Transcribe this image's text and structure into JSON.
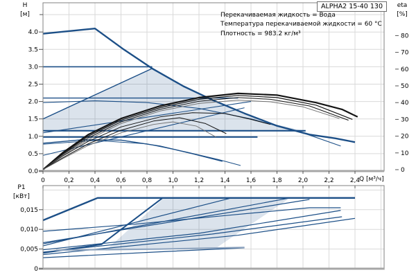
{
  "pump_model_box": "ALPHA2 15-40 130",
  "info_lines": [
    "Перекачиваемая жидкость = Вода",
    "Температура перекачиваемой жидкости = 60 °C",
    "Плотность = 983.2 кг/м³"
  ],
  "axes": {
    "h": {
      "name": "H",
      "unit": "[м]",
      "tick_labels": [
        "0.0",
        "0.5",
        "1.0",
        "1.5",
        "2.0",
        "2.5",
        "3.0",
        "3.5",
        "4.0"
      ],
      "tick_values": [
        0,
        0.5,
        1,
        1.5,
        2,
        2.5,
        3,
        3.5,
        4
      ],
      "minor_tick_values": [
        4.5
      ]
    },
    "eta": {
      "name": "eta",
      "unit": "[%]",
      "tick_labels": [
        "0",
        "10",
        "20",
        "30",
        "40",
        "50",
        "60",
        "70",
        "80"
      ],
      "tick_values": [
        0,
        10,
        20,
        30,
        40,
        50,
        60,
        70,
        80
      ]
    },
    "q": {
      "label": "Q [м³/ч]",
      "tick_labels": [
        "0",
        "0,2",
        "0,4",
        "0,6",
        "0,8",
        "1,0",
        "1,2",
        "1,4",
        "1,6",
        "1,8",
        "2,0",
        "2,2",
        "2,4"
      ],
      "tick_values": [
        0,
        0.2,
        0.4,
        0.6,
        0.8,
        1.0,
        1.2,
        1.4,
        1.6,
        1.8,
        2.0,
        2.2,
        2.4
      ]
    },
    "p1": {
      "name": "P1",
      "unit": "[кВт]",
      "tick_labels": [
        "0",
        "0,005",
        "0,010",
        "0,015"
      ],
      "tick_values": [
        0,
        0.005,
        0.01,
        0.015
      ]
    }
  },
  "colors": {
    "curve_blue": "#1c4f87",
    "eta_black": "#141414",
    "eta_gray": "#707070",
    "muted_blue": "#8ea4bf",
    "region_fill": "rgba(31,82,136,0.16)",
    "grid": "#d9d9d9",
    "frame": "#808080",
    "baseline": "#a6a6a6",
    "text": "#000000"
  },
  "chart_data": [
    {
      "type": "line",
      "title": "ALPHA2 15-40 130 — H/Q pump curves with efficiency",
      "xlabel": "Q [м³/ч]",
      "ylabel": "H [м]",
      "y2label": "eta [%]",
      "xlim": [
        0,
        2.62
      ],
      "ylim": [
        0,
        4.85
      ],
      "y2lim": [
        0,
        80
      ],
      "grid": true,
      "region": {
        "name": "proportional-pressure-operating-area",
        "points": [
          [
            0,
            1.16
          ],
          [
            0,
            1.5
          ],
          [
            0.84,
            2.95
          ],
          [
            1.1,
            2.4
          ],
          [
            1.45,
            1.82
          ],
          [
            1.75,
            1.38
          ],
          [
            2.0,
            1.16
          ]
        ]
      },
      "series": [
        {
          "name": "max-speed-curve",
          "axis": "H",
          "color": "blue",
          "width": 2.4,
          "points": [
            [
              0,
              3.95
            ],
            [
              0.4,
              4.1
            ],
            [
              0.62,
              3.5
            ],
            [
              0.84,
              2.95
            ],
            [
              1.08,
              2.44
            ],
            [
              1.3,
              2.05
            ],
            [
              1.55,
              1.66
            ],
            [
              1.8,
              1.3
            ],
            [
              2.05,
              1.05
            ],
            [
              2.25,
              0.94
            ],
            [
              2.4,
              0.83
            ]
          ]
        },
        {
          "name": "speed2-curve",
          "axis": "H",
          "color": "blue",
          "width": 1.1,
          "points": [
            [
              0,
              1.97
            ],
            [
              0.4,
              2.02
            ],
            [
              0.8,
              1.97
            ],
            [
              1.2,
              1.8
            ],
            [
              1.6,
              1.5
            ],
            [
              2.0,
              1.1
            ],
            [
              2.29,
              0.72
            ]
          ]
        },
        {
          "name": "min-speed-curve",
          "axis": "H",
          "color": "blue",
          "width": 1.4,
          "points": [
            [
              0,
              0.8
            ],
            [
              0.3,
              0.9
            ],
            [
              0.6,
              0.89
            ],
            [
              0.9,
              0.72
            ],
            [
              1.15,
              0.5
            ],
            [
              1.38,
              0.28
            ]
          ]
        },
        {
          "name": "min-speed-curve-2",
          "axis": "H",
          "color": "blue",
          "width": 1,
          "points": [
            [
              0,
              0.77
            ],
            [
              0.4,
              0.88
            ],
            [
              0.8,
              0.78
            ],
            [
              1.1,
              0.55
            ],
            [
              1.35,
              0.33
            ],
            [
              1.52,
              0.16
            ]
          ]
        },
        {
          "name": "constant-pressure-3-line",
          "axis": "H",
          "color": "blue",
          "width": 1.6,
          "points": [
            [
              0,
              3.0
            ],
            [
              0.84,
              3.0
            ]
          ]
        },
        {
          "name": "constant-pressure-2-line",
          "axis": "H",
          "color": "blue",
          "width": 1.4,
          "points": [
            [
              0,
              2.1
            ],
            [
              1.5,
              2.1
            ]
          ]
        },
        {
          "name": "constant-pressure-1b-line",
          "axis": "H",
          "color": "blue",
          "width": 2.2,
          "points": [
            [
              0,
              1.16
            ],
            [
              2.02,
              1.16
            ]
          ]
        },
        {
          "name": "constant-pressure-1-line",
          "axis": "H",
          "color": "blue",
          "width": 2.2,
          "points": [
            [
              0,
              0.98
            ],
            [
              1.65,
              0.98
            ]
          ]
        },
        {
          "name": "proportional-pressure-3-line",
          "axis": "H",
          "color": "blue",
          "width": 1.4,
          "points": [
            [
              0,
              1.5
            ],
            [
              0.84,
              2.95
            ]
          ]
        },
        {
          "name": "proportional-pressure-2-line",
          "axis": "H",
          "color": "blue",
          "width": 1.1,
          "points": [
            [
              0,
              1.1
            ],
            [
              0.8,
              1.55
            ],
            [
              1.6,
              2.0
            ]
          ]
        },
        {
          "name": "proportional-pressure-1-line",
          "axis": "H",
          "color": "blue",
          "width": 1.1,
          "points": [
            [
              0,
              0.45
            ],
            [
              0.8,
              1.16
            ],
            [
              1.55,
              1.82
            ]
          ]
        },
        {
          "name": "eta-curve-1",
          "axis": "eta",
          "color": "black",
          "width": 2.2,
          "points": [
            [
              0,
              0
            ],
            [
              0.15,
              10
            ],
            [
              0.35,
              21
            ],
            [
              0.6,
              30.5
            ],
            [
              0.9,
              38
            ],
            [
              1.2,
              43
            ],
            [
              1.5,
              45.5
            ],
            [
              1.8,
              44.5
            ],
            [
              2.1,
              40
            ],
            [
              2.3,
              36
            ],
            [
              2.42,
              31.5
            ]
          ]
        },
        {
          "name": "eta-curve-2",
          "axis": "eta",
          "color": "black",
          "width": 1.2,
          "points": [
            [
              0,
              0
            ],
            [
              0.15,
              9.5
            ],
            [
              0.35,
              20
            ],
            [
              0.6,
              29.5
            ],
            [
              0.9,
              37
            ],
            [
              1.2,
              42
            ],
            [
              1.5,
              44.3
            ],
            [
              1.8,
              43
            ],
            [
              2.1,
              38.5
            ],
            [
              2.38,
              30
            ]
          ]
        },
        {
          "name": "eta-curve-3",
          "axis": "eta",
          "color": "black",
          "width": 1,
          "points": [
            [
              0,
              0
            ],
            [
              0.15,
              9
            ],
            [
              0.35,
              19
            ],
            [
              0.6,
              28.5
            ],
            [
              0.9,
              36
            ],
            [
              1.2,
              40.8
            ],
            [
              1.5,
              43
            ],
            [
              1.75,
              42
            ],
            [
              2.05,
              38
            ],
            [
              2.35,
              29.5
            ]
          ]
        },
        {
          "name": "eta-curve-4",
          "axis": "eta",
          "color": "gray",
          "width": 1,
          "points": [
            [
              0,
              0
            ],
            [
              0.15,
              8.5
            ],
            [
              0.35,
              18
            ],
            [
              0.6,
              27.5
            ],
            [
              0.9,
              35
            ],
            [
              1.2,
              39.5
            ],
            [
              1.5,
              41.5
            ],
            [
              1.75,
              40.5
            ],
            [
              2.0,
              37.5
            ],
            [
              2.28,
              30.5
            ]
          ]
        },
        {
          "name": "eta-curve-5",
          "axis": "eta",
          "color": "black",
          "width": 1,
          "points": [
            [
              0,
              0
            ],
            [
              0.15,
              8
            ],
            [
              0.35,
              17
            ],
            [
              0.6,
              25.5
            ],
            [
              0.9,
              31.5
            ],
            [
              1.15,
              34
            ],
            [
              1.4,
              33.5
            ],
            [
              1.6,
              30
            ],
            [
              1.75,
              27
            ]
          ]
        },
        {
          "name": "eta-curve-6",
          "axis": "eta",
          "color": "black",
          "width": 1,
          "points": [
            [
              0,
              0
            ],
            [
              0.15,
              7
            ],
            [
              0.35,
              15.5
            ],
            [
              0.6,
              23.5
            ],
            [
              0.85,
              29
            ],
            [
              1.05,
              31
            ],
            [
              1.25,
              27.5
            ],
            [
              1.41,
              21.5
            ]
          ]
        },
        {
          "name": "eta-curve-7",
          "axis": "eta",
          "color": "gray",
          "width": 0.9,
          "points": [
            [
              0,
              0
            ],
            [
              0.15,
              6.5
            ],
            [
              0.35,
              14.5
            ],
            [
              0.6,
              22
            ],
            [
              0.85,
              27
            ],
            [
              1.0,
              28.5
            ],
            [
              1.18,
              26
            ],
            [
              1.33,
              19.5
            ]
          ]
        }
      ]
    },
    {
      "type": "line",
      "title": "ALPHA2 15-40 130 — P1/Q power curves",
      "xlabel": "Q [м³/ч]",
      "ylabel": "P1 [кВт]",
      "xlim": [
        0,
        2.62
      ],
      "ylim": [
        0,
        0.0211
      ],
      "grid": true,
      "region": {
        "name": "power-operating-area",
        "points": [
          [
            0.48,
            0.0046
          ],
          [
            0.93,
            0.018
          ],
          [
            1.9,
            0.018
          ],
          [
            1.32,
            0.005
          ]
        ]
      },
      "series": [
        {
          "name": "p1-max-speed",
          "axis": "P",
          "color": "blue",
          "width": 2.4,
          "points": [
            [
              0,
              0.0123
            ],
            [
              0.42,
              0.018
            ],
            [
              2.4,
              0.018
            ]
          ]
        },
        {
          "name": "p1-speed2",
          "axis": "P",
          "color": "blue",
          "width": 1.2,
          "points": [
            [
              0,
              0.0095
            ],
            [
              0.7,
              0.0113
            ],
            [
              1.4,
              0.0135
            ],
            [
              2.05,
              0.0155
            ],
            [
              2.29,
              0.0155
            ]
          ]
        },
        {
          "name": "p1-line-3",
          "axis": "P",
          "color": "blue",
          "width": 1.2,
          "points": [
            [
              0,
              0.0066
            ],
            [
              2.05,
              0.0176
            ]
          ]
        },
        {
          "name": "p1-line-4",
          "axis": "P",
          "color": "blue",
          "width": 1.2,
          "points": [
            [
              0,
              0.0063
            ],
            [
              1.9,
              0.018
            ]
          ]
        },
        {
          "name": "p1-line-5",
          "axis": "P",
          "color": "blue",
          "width": 1.2,
          "points": [
            [
              0,
              0.0058
            ],
            [
              1.45,
              0.018
            ]
          ]
        },
        {
          "name": "p1-steep-line",
          "axis": "P",
          "color": "blue",
          "width": 2,
          "points": [
            [
              0,
              0.004
            ],
            [
              0.45,
              0.0062
            ],
            [
              0.92,
              0.018
            ]
          ]
        },
        {
          "name": "p1-line-7",
          "axis": "P",
          "color": "blue",
          "width": 1.2,
          "points": [
            [
              0,
              0.0048
            ],
            [
              1.2,
              0.009
            ],
            [
              2.29,
              0.0148
            ]
          ]
        },
        {
          "name": "p1-line-8",
          "axis": "P",
          "color": "blue",
          "width": 1.2,
          "points": [
            [
              0,
              0.0042
            ],
            [
              1.3,
              0.0088
            ],
            [
              2.3,
              0.0132
            ]
          ]
        },
        {
          "name": "p1-line-9",
          "axis": "P",
          "color": "blue",
          "width": 1.2,
          "points": [
            [
              0,
              0.0036
            ],
            [
              1.5,
              0.0085
            ],
            [
              2.4,
              0.0128
            ]
          ]
        },
        {
          "name": "p1-min-speed",
          "axis": "P",
          "color": "blue",
          "width": 1.2,
          "points": [
            [
              0,
              0.0028
            ],
            [
              0.9,
              0.0043
            ],
            [
              1.55,
              0.0053
            ]
          ]
        },
        {
          "name": "p1-min-flat",
          "axis": "P",
          "color": "muted",
          "width": 2,
          "points": [
            [
              0.1,
              0.0047
            ],
            [
              0.9,
              0.005
            ],
            [
              1.55,
              0.0054
            ]
          ]
        }
      ]
    }
  ]
}
